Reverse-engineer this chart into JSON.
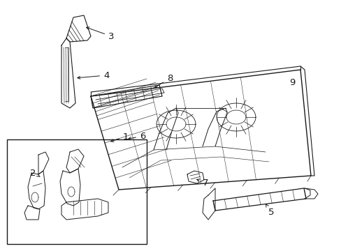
{
  "bg_color": "#ffffff",
  "line_color": "#1a1a1a",
  "fig_width": 4.89,
  "fig_height": 3.6,
  "dpi": 100,
  "label_fontsize": 9.5
}
